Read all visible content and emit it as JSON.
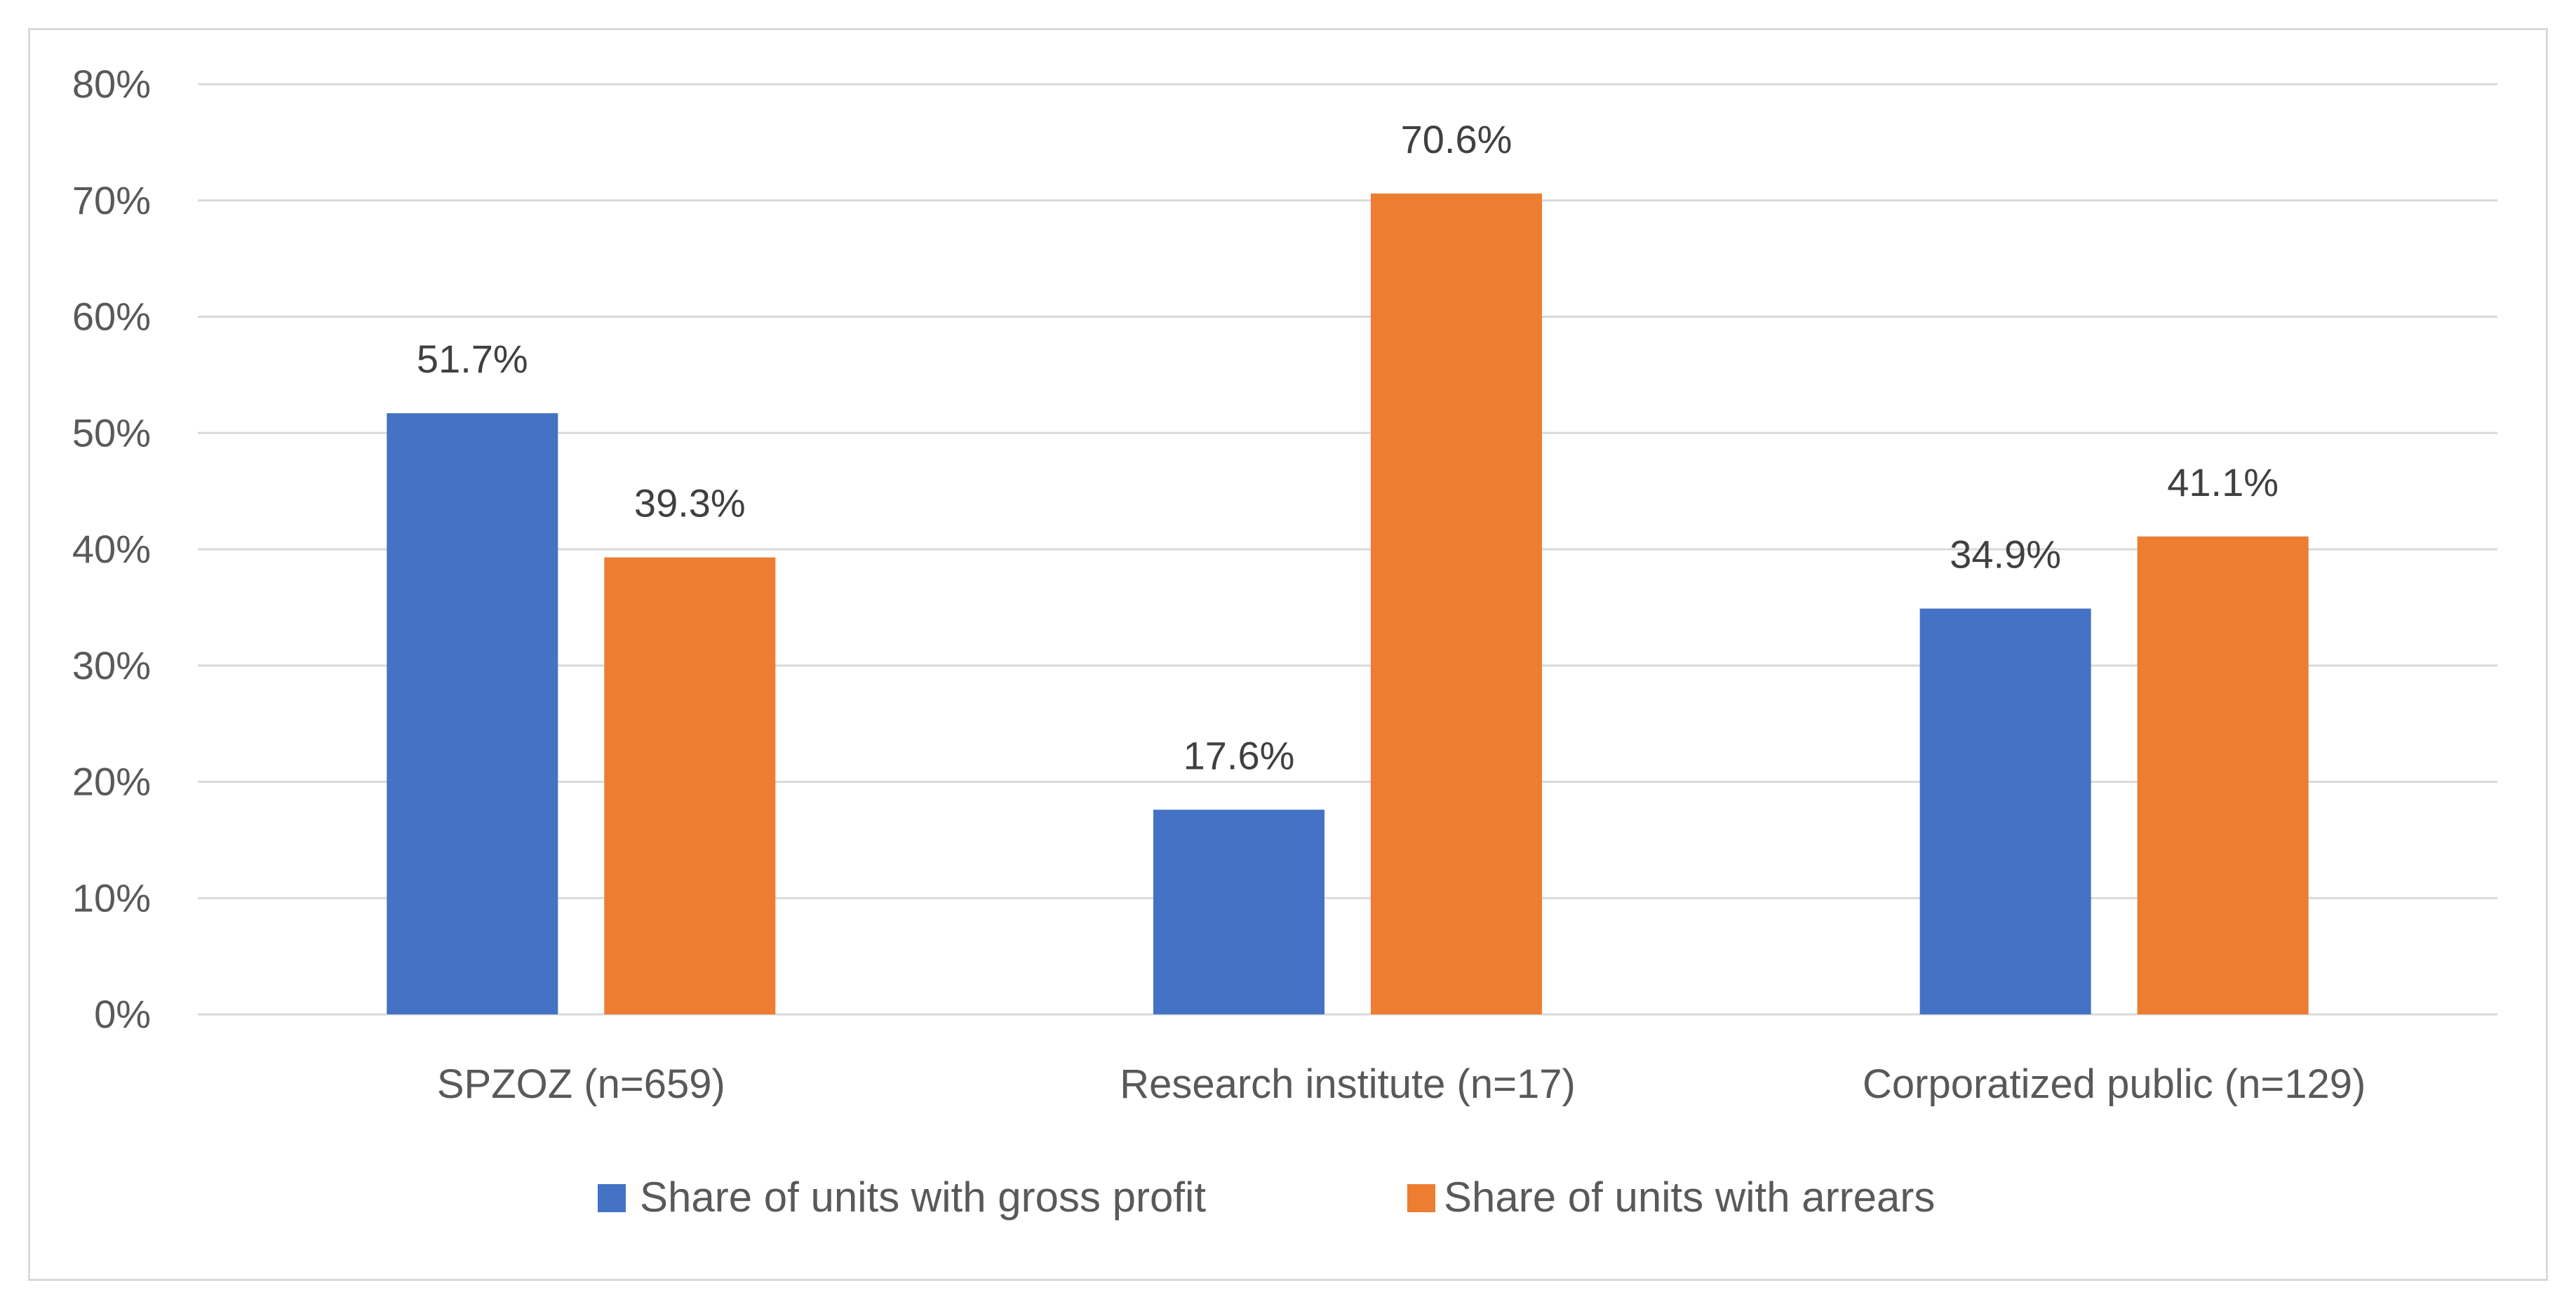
{
  "chart_data": {
    "type": "bar",
    "title": "",
    "xlabel": "",
    "ylabel": "",
    "ylim": [
      0,
      80
    ],
    "yticks": [
      0,
      10,
      20,
      30,
      40,
      50,
      60,
      70,
      80
    ],
    "ytick_labels": [
      "0%",
      "10%",
      "20%",
      "30%",
      "40%",
      "50%",
      "60%",
      "70%",
      "80%"
    ],
    "grid": true,
    "legend_position": "bottom",
    "categories": [
      "SPZOZ (n=659)",
      "Research institute (n=17)",
      "Corporatized public (n=129)"
    ],
    "series": [
      {
        "name": "Share of units with gross profit",
        "color": "#4472c4",
        "values": [
          51.7,
          17.6,
          34.9
        ],
        "labels": [
          "51.7%",
          "17.6%",
          "34.9%"
        ]
      },
      {
        "name": "Share of units with arrears",
        "color": "#ed7d31",
        "values": [
          39.3,
          70.6,
          41.1
        ],
        "labels": [
          "39.3%",
          "70.6%",
          "41.1%"
        ]
      }
    ]
  },
  "colors": {
    "gridline": "#d9d9d9",
    "axis_text": "#595959",
    "label_text": "#404040",
    "frame": "#d9d9d9"
  }
}
